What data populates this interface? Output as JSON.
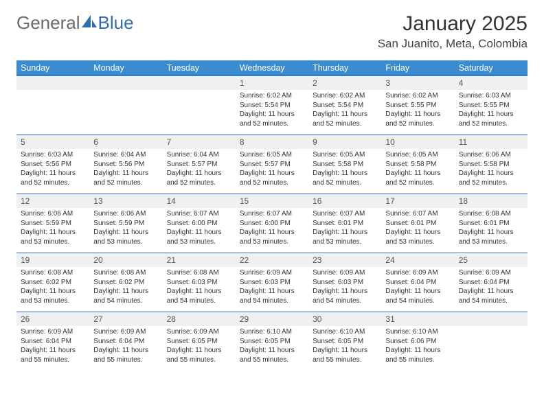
{
  "brand": {
    "part1": "General",
    "part2": "Blue"
  },
  "title": "January 2025",
  "location": "San Juanito, Meta, Colombia",
  "colors": {
    "header_bg": "#3b8bd0",
    "rule": "#2f6fb0",
    "daynum_bg": "#eef0f2",
    "text": "#333333",
    "logo_grey": "#6b6b6b",
    "logo_blue": "#2f6fb0"
  },
  "calendar": {
    "headers": [
      "Sunday",
      "Monday",
      "Tuesday",
      "Wednesday",
      "Thursday",
      "Friday",
      "Saturday"
    ],
    "first_weekday": 3,
    "days": [
      {
        "n": 1,
        "sunrise": "6:02 AM",
        "sunset": "5:54 PM",
        "daylight": "11 hours and 52 minutes."
      },
      {
        "n": 2,
        "sunrise": "6:02 AM",
        "sunset": "5:54 PM",
        "daylight": "11 hours and 52 minutes."
      },
      {
        "n": 3,
        "sunrise": "6:02 AM",
        "sunset": "5:55 PM",
        "daylight": "11 hours and 52 minutes."
      },
      {
        "n": 4,
        "sunrise": "6:03 AM",
        "sunset": "5:55 PM",
        "daylight": "11 hours and 52 minutes."
      },
      {
        "n": 5,
        "sunrise": "6:03 AM",
        "sunset": "5:56 PM",
        "daylight": "11 hours and 52 minutes."
      },
      {
        "n": 6,
        "sunrise": "6:04 AM",
        "sunset": "5:56 PM",
        "daylight": "11 hours and 52 minutes."
      },
      {
        "n": 7,
        "sunrise": "6:04 AM",
        "sunset": "5:57 PM",
        "daylight": "11 hours and 52 minutes."
      },
      {
        "n": 8,
        "sunrise": "6:05 AM",
        "sunset": "5:57 PM",
        "daylight": "11 hours and 52 minutes."
      },
      {
        "n": 9,
        "sunrise": "6:05 AM",
        "sunset": "5:58 PM",
        "daylight": "11 hours and 52 minutes."
      },
      {
        "n": 10,
        "sunrise": "6:05 AM",
        "sunset": "5:58 PM",
        "daylight": "11 hours and 52 minutes."
      },
      {
        "n": 11,
        "sunrise": "6:06 AM",
        "sunset": "5:58 PM",
        "daylight": "11 hours and 52 minutes."
      },
      {
        "n": 12,
        "sunrise": "6:06 AM",
        "sunset": "5:59 PM",
        "daylight": "11 hours and 53 minutes."
      },
      {
        "n": 13,
        "sunrise": "6:06 AM",
        "sunset": "5:59 PM",
        "daylight": "11 hours and 53 minutes."
      },
      {
        "n": 14,
        "sunrise": "6:07 AM",
        "sunset": "6:00 PM",
        "daylight": "11 hours and 53 minutes."
      },
      {
        "n": 15,
        "sunrise": "6:07 AM",
        "sunset": "6:00 PM",
        "daylight": "11 hours and 53 minutes."
      },
      {
        "n": 16,
        "sunrise": "6:07 AM",
        "sunset": "6:01 PM",
        "daylight": "11 hours and 53 minutes."
      },
      {
        "n": 17,
        "sunrise": "6:07 AM",
        "sunset": "6:01 PM",
        "daylight": "11 hours and 53 minutes."
      },
      {
        "n": 18,
        "sunrise": "6:08 AM",
        "sunset": "6:01 PM",
        "daylight": "11 hours and 53 minutes."
      },
      {
        "n": 19,
        "sunrise": "6:08 AM",
        "sunset": "6:02 PM",
        "daylight": "11 hours and 53 minutes."
      },
      {
        "n": 20,
        "sunrise": "6:08 AM",
        "sunset": "6:02 PM",
        "daylight": "11 hours and 54 minutes."
      },
      {
        "n": 21,
        "sunrise": "6:08 AM",
        "sunset": "6:03 PM",
        "daylight": "11 hours and 54 minutes."
      },
      {
        "n": 22,
        "sunrise": "6:09 AM",
        "sunset": "6:03 PM",
        "daylight": "11 hours and 54 minutes."
      },
      {
        "n": 23,
        "sunrise": "6:09 AM",
        "sunset": "6:03 PM",
        "daylight": "11 hours and 54 minutes."
      },
      {
        "n": 24,
        "sunrise": "6:09 AM",
        "sunset": "6:04 PM",
        "daylight": "11 hours and 54 minutes."
      },
      {
        "n": 25,
        "sunrise": "6:09 AM",
        "sunset": "6:04 PM",
        "daylight": "11 hours and 54 minutes."
      },
      {
        "n": 26,
        "sunrise": "6:09 AM",
        "sunset": "6:04 PM",
        "daylight": "11 hours and 55 minutes."
      },
      {
        "n": 27,
        "sunrise": "6:09 AM",
        "sunset": "6:04 PM",
        "daylight": "11 hours and 55 minutes."
      },
      {
        "n": 28,
        "sunrise": "6:09 AM",
        "sunset": "6:05 PM",
        "daylight": "11 hours and 55 minutes."
      },
      {
        "n": 29,
        "sunrise": "6:10 AM",
        "sunset": "6:05 PM",
        "daylight": "11 hours and 55 minutes."
      },
      {
        "n": 30,
        "sunrise": "6:10 AM",
        "sunset": "6:05 PM",
        "daylight": "11 hours and 55 minutes."
      },
      {
        "n": 31,
        "sunrise": "6:10 AM",
        "sunset": "6:06 PM",
        "daylight": "11 hours and 55 minutes."
      }
    ],
    "labels": {
      "sunrise": "Sunrise:",
      "sunset": "Sunset:",
      "daylight": "Daylight:"
    }
  }
}
